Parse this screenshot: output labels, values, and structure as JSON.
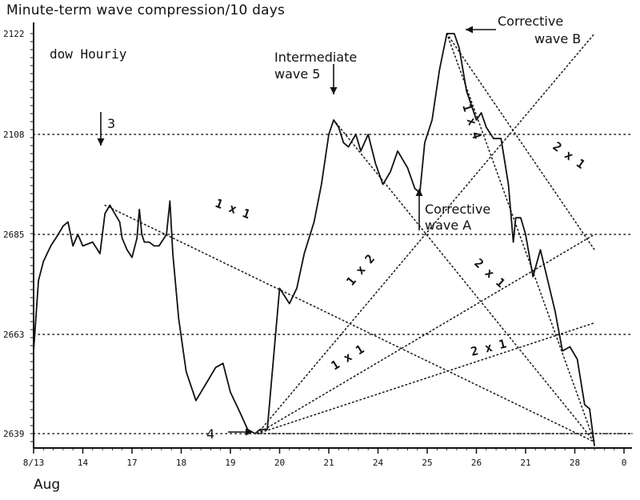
{
  "chart_data": {
    "type": "line",
    "title": "Minute-term wave compression/10 days",
    "subtitle": "dow Houriy",
    "month_label": "Aug",
    "x_ticks": [
      "8/13",
      "14",
      "17",
      "18",
      "19",
      "20",
      "21",
      "24",
      "25",
      "26",
      "21",
      "28",
      "0"
    ],
    "y_ticks": [
      "2122",
      "2108",
      "2685",
      "2663",
      "2639"
    ],
    "grid": "dotted horizontal at labeled levels",
    "series": [
      {
        "values": [
          [
            0,
            2660
          ],
          [
            0.1,
            2678
          ],
          [
            0.2,
            2683
          ],
          [
            0.35,
            2687
          ],
          [
            0.5,
            2690
          ],
          [
            0.6,
            2692
          ],
          [
            0.7,
            2693
          ],
          [
            0.8,
            2687
          ],
          [
            0.9,
            2690
          ],
          [
            1.0,
            2687
          ],
          [
            1.2,
            2688
          ],
          [
            1.35,
            2685
          ],
          [
            1.45,
            2695
          ],
          [
            1.55,
            2697
          ],
          [
            1.6,
            2696
          ],
          [
            1.75,
            2693
          ],
          [
            1.8,
            2689
          ],
          [
            1.9,
            2686
          ],
          [
            2.0,
            2684
          ],
          [
            2.1,
            2689
          ],
          [
            2.15,
            2696
          ],
          [
            2.2,
            2690
          ],
          [
            2.25,
            2688
          ],
          [
            2.35,
            2688
          ],
          [
            2.45,
            2687
          ],
          [
            2.55,
            2687
          ],
          [
            2.7,
            2690
          ],
          [
            2.77,
            2698
          ],
          [
            2.83,
            2685
          ],
          [
            2.95,
            2668
          ],
          [
            3.1,
            2655
          ],
          [
            3.3,
            2648
          ],
          [
            3.5,
            2652
          ],
          [
            3.7,
            2656
          ],
          [
            3.85,
            2657
          ],
          [
            4.0,
            2650
          ],
          [
            4.2,
            2645
          ],
          [
            4.35,
            2641
          ],
          [
            4.5,
            2640
          ],
          [
            4.6,
            2641
          ],
          [
            4.75,
            2641
          ],
          [
            5.0,
            2676
          ],
          [
            5.2,
            2672
          ],
          [
            5.35,
            2676
          ],
          [
            5.5,
            2685
          ],
          [
            5.7,
            2693
          ],
          [
            5.85,
            2702
          ],
          [
            6.0,
            2714
          ],
          [
            6.1,
            2716
          ],
          [
            6.2,
            2715
          ],
          [
            6.3,
            2712
          ],
          [
            6.4,
            2711
          ],
          [
            6.55,
            2714
          ],
          [
            6.65,
            2710
          ],
          [
            6.8,
            2714
          ],
          [
            6.95,
            2707
          ],
          [
            7.1,
            2702
          ],
          [
            7.25,
            2705
          ],
          [
            7.4,
            2710
          ],
          [
            7.6,
            2706
          ],
          [
            7.75,
            2701
          ],
          [
            7.85,
            2700
          ],
          [
            7.95,
            2712
          ],
          [
            8.1,
            2716
          ],
          [
            8.25,
            2723
          ],
          [
            8.4,
            2728
          ],
          [
            8.55,
            2728
          ],
          [
            8.65,
            2726
          ],
          [
            8.8,
            2720
          ],
          [
            8.9,
            2718
          ],
          [
            9.0,
            2716
          ],
          [
            9.1,
            2717
          ],
          [
            9.2,
            2715
          ],
          [
            9.35,
            2713
          ],
          [
            9.5,
            2713
          ],
          [
            9.65,
            2702
          ],
          [
            9.75,
            2688
          ],
          [
            9.8,
            2694
          ],
          [
            9.9,
            2694
          ],
          [
            10.0,
            2690
          ],
          [
            10.15,
            2679
          ],
          [
            10.3,
            2686
          ],
          [
            10.45,
            2678
          ],
          [
            10.6,
            2670
          ],
          [
            10.75,
            2660
          ],
          [
            10.9,
            2661
          ],
          [
            11.05,
            2658
          ],
          [
            11.2,
            2647
          ],
          [
            11.3,
            2646
          ],
          [
            11.4,
            2637
          ]
        ]
      }
    ],
    "annotations": [
      {
        "text": "3",
        "at": [
          1.45,
          2697
        ]
      },
      {
        "text": "4",
        "at": [
          4.5,
          2640
        ]
      },
      {
        "text": "Intermediate",
        "at": [
          6.1,
          2716
        ]
      },
      {
        "text": "wave 5",
        "at": [
          6.1,
          2716
        ]
      },
      {
        "text": "Corrective",
        "at": [
          7.85,
          2700
        ]
      },
      {
        "text": "wave A",
        "at": [
          7.85,
          2700
        ]
      },
      {
        "text": "Corrective",
        "at": [
          8.4,
          2728
        ]
      },
      {
        "text": "wave B",
        "at": [
          8.4,
          2728
        ]
      }
    ],
    "gann_fans": [
      {
        "label": "1 x 1",
        "from": [
          1.45,
          2697
        ],
        "to": [
          11.4,
          2638
        ]
      },
      {
        "label": "1 x 2",
        "from": [
          4.55,
          2640
        ],
        "to": [
          11.4,
          2728
        ]
      },
      {
        "label": "1 x 1",
        "from": [
          4.55,
          2640
        ],
        "to": [
          11.4,
          2690
        ]
      },
      {
        "label": "2 x 1",
        "from": [
          4.55,
          2640
        ],
        "to": [
          11.4,
          2667
        ]
      },
      {
        "label": "2 x 1",
        "from": [
          6.1,
          2716
        ],
        "to": [
          11.4,
          2638
        ]
      },
      {
        "label": "1 x 4",
        "from": [
          8.4,
          2728
        ],
        "to": [
          11.4,
          2638
        ]
      },
      {
        "label": "2 x 1",
        "from": [
          8.4,
          2728
        ],
        "to": [
          11.4,
          2686
        ]
      }
    ]
  }
}
